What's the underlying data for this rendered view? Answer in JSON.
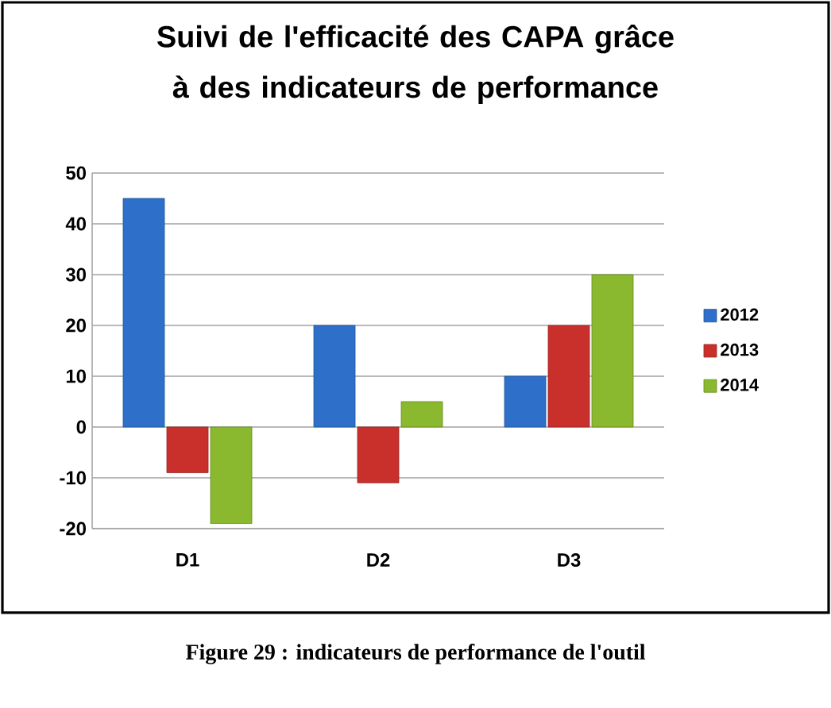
{
  "chart_data": {
    "type": "bar",
    "title": "Suivi de l'efficacité des CAPA grâce à des indicateurs de performance",
    "categories": [
      "D1",
      "D2",
      "D3"
    ],
    "series": [
      {
        "name": "2012",
        "color": "#2e6fc9",
        "values": [
          45,
          20,
          10
        ]
      },
      {
        "name": "2013",
        "color": "#c9302c",
        "values": [
          -9,
          -11,
          20
        ]
      },
      {
        "name": "2014",
        "color": "#8ab82e",
        "values": [
          -19,
          5,
          30
        ]
      }
    ],
    "ylim": [
      -20,
      50
    ],
    "yticks": [
      -20,
      -10,
      0,
      10,
      20,
      30,
      40,
      50
    ],
    "grid": "y",
    "legend": "right",
    "annotations": [
      "Figure 29 : indicateurs de performance de l'outil"
    ]
  }
}
